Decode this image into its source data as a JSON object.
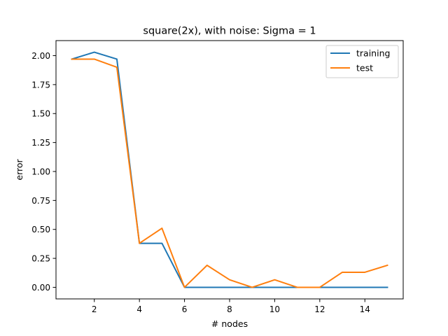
{
  "chart_data": {
    "type": "line",
    "title": "square(2x), with noise: Sigma = 1",
    "xlabel": "# nodes",
    "ylabel": "error",
    "xlim": [
      0.3,
      15.7
    ],
    "ylim": [
      -0.1,
      2.13
    ],
    "xticks": [
      2,
      4,
      6,
      8,
      10,
      12,
      14
    ],
    "yticks": [
      0.0,
      0.25,
      0.5,
      0.75,
      1.0,
      1.25,
      1.5,
      1.75,
      2.0
    ],
    "ytick_labels": [
      "0.00",
      "0.25",
      "0.50",
      "0.75",
      "1.00",
      "1.25",
      "1.50",
      "1.75",
      "2.00"
    ],
    "grid": false,
    "legend_position": "top-right",
    "x": [
      1,
      2,
      3,
      4,
      5,
      6,
      7,
      8,
      9,
      10,
      11,
      12,
      13,
      14,
      15
    ],
    "series": [
      {
        "name": "training",
        "color": "#1f77b4",
        "values": [
          1.97,
          2.03,
          1.97,
          0.38,
          0.38,
          0.0,
          0.0,
          0.0,
          0.0,
          0.0,
          0.0,
          0.0,
          0.0,
          0.0,
          0.0
        ]
      },
      {
        "name": "test",
        "color": "#ff7f0e",
        "values": [
          1.97,
          1.97,
          1.9,
          0.38,
          0.51,
          0.0,
          0.19,
          0.065,
          0.0,
          0.065,
          0.0,
          0.0,
          0.13,
          0.13,
          0.19
        ]
      }
    ]
  }
}
